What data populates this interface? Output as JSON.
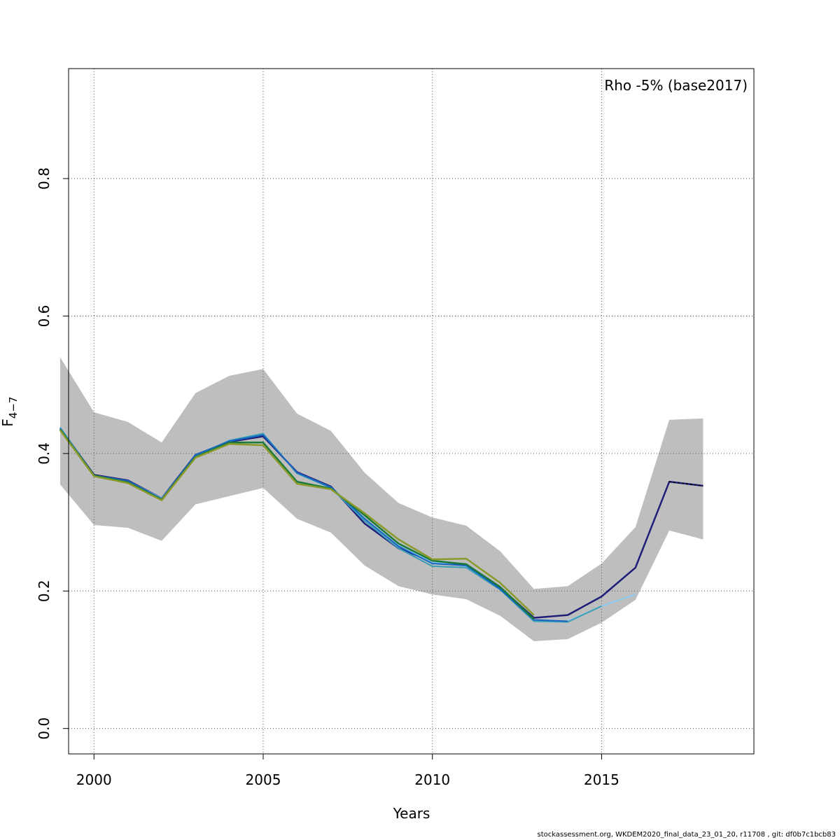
{
  "chart_data": {
    "type": "line",
    "xlabel": "Years",
    "ylabel_main": "F",
    "ylabel_sub": "4−7",
    "annotation": "Rho -5% (base2017)",
    "xlim": [
      1999.25,
      2019.5
    ],
    "ylim": [
      -0.037,
      0.96
    ],
    "x_ticks": [
      2000,
      2005,
      2010,
      2015
    ],
    "y_ticks": [
      0.0,
      0.2,
      0.4,
      0.6,
      0.8
    ],
    "y_tick_labels": [
      "0.0",
      "0.2",
      "0.4",
      "0.6",
      "0.8"
    ],
    "grid": true,
    "colors": {
      "band": "#bebebe",
      "grid": "#555555"
    },
    "confidence_band": {
      "x": [
        1999,
        2000,
        2001,
        2002,
        2003,
        2004,
        2005,
        2006,
        2007,
        2008,
        2009,
        2010,
        2011,
        2012,
        2013,
        2014,
        2015,
        2016,
        2017,
        2018
      ],
      "upper": [
        0.54,
        0.46,
        0.446,
        0.416,
        0.488,
        0.513,
        0.523,
        0.458,
        0.433,
        0.372,
        0.328,
        0.307,
        0.295,
        0.258,
        0.203,
        0.207,
        0.24,
        0.293,
        0.449,
        0.451
      ],
      "lower": [
        0.355,
        0.296,
        0.292,
        0.273,
        0.326,
        0.338,
        0.35,
        0.305,
        0.285,
        0.237,
        0.207,
        0.195,
        0.188,
        0.164,
        0.127,
        0.13,
        0.154,
        0.187,
        0.288,
        0.275
      ]
    },
    "series": [
      {
        "color": "#1f1f7a",
        "width": 2.5,
        "x": [
          1999,
          2000,
          2001,
          2002,
          2003,
          2004,
          2005,
          2006,
          2007,
          2008,
          2009,
          2010,
          2011,
          2012,
          2013,
          2014,
          2015,
          2016,
          2017,
          2018
        ],
        "values": [
          0.437,
          0.369,
          0.361,
          0.335,
          0.398,
          0.417,
          0.425,
          0.373,
          0.352,
          0.298,
          0.262,
          0.243,
          0.238,
          0.205,
          0.161,
          0.165,
          0.192,
          0.234,
          0.359,
          0.353
        ]
      },
      {
        "color": "#000000",
        "width": 1.5,
        "dashed": true,
        "x": [
          2017,
          2018
        ],
        "values": [
          0.359,
          0.353
        ]
      },
      {
        "color": "#8cc8f0",
        "width": 2,
        "x": [
          1999,
          2000,
          2001,
          2002,
          2003,
          2004,
          2005,
          2006,
          2007,
          2008,
          2009,
          2010,
          2011,
          2012,
          2013,
          2014,
          2015,
          2016
        ],
        "values": [
          0.437,
          0.368,
          0.36,
          0.335,
          0.397,
          0.418,
          0.428,
          0.372,
          0.351,
          0.305,
          0.266,
          0.242,
          0.236,
          0.203,
          0.157,
          0.156,
          0.178,
          0.195
        ]
      },
      {
        "color": "#3a9fb8",
        "width": 2,
        "x": [
          1999,
          2000,
          2001,
          2002,
          2003,
          2004,
          2005,
          2006,
          2007,
          2008,
          2009,
          2010,
          2011,
          2012,
          2013,
          2014,
          2015
        ],
        "values": [
          0.438,
          0.368,
          0.36,
          0.334,
          0.396,
          0.419,
          0.429,
          0.371,
          0.35,
          0.302,
          0.262,
          0.236,
          0.234,
          0.202,
          0.156,
          0.155,
          0.178
        ]
      },
      {
        "color": "#1565c0",
        "width": 2,
        "x": [
          1999,
          2000,
          2001,
          2002,
          2003,
          2004,
          2005,
          2006,
          2007,
          2008,
          2009,
          2010,
          2011,
          2012,
          2013,
          2014
        ],
        "values": [
          0.436,
          0.368,
          0.36,
          0.334,
          0.398,
          0.418,
          0.427,
          0.372,
          0.351,
          0.305,
          0.265,
          0.24,
          0.237,
          0.203,
          0.158,
          0.156
        ]
      },
      {
        "color": "#1a7a3a",
        "width": 2.5,
        "x": [
          1999,
          2000,
          2001,
          2002,
          2003,
          2004,
          2005,
          2006,
          2007,
          2008,
          2009,
          2010,
          2011,
          2012,
          2013
        ],
        "values": [
          0.435,
          0.368,
          0.358,
          0.333,
          0.395,
          0.416,
          0.416,
          0.359,
          0.349,
          0.31,
          0.269,
          0.244,
          0.239,
          0.206,
          0.159
        ]
      },
      {
        "color": "#8a9a2a",
        "width": 2.5,
        "x": [
          1999,
          2000,
          2001,
          2002,
          2003,
          2004,
          2005,
          2006,
          2007,
          2008,
          2009,
          2010,
          2011,
          2012,
          2013
        ],
        "values": [
          0.434,
          0.367,
          0.357,
          0.332,
          0.394,
          0.414,
          0.412,
          0.356,
          0.348,
          0.313,
          0.275,
          0.246,
          0.247,
          0.212,
          0.165
        ]
      }
    ]
  },
  "footer": "stockassessment.org, WKDEM2020_final_data_23_01_20, r11708 , git: df0b7c1bcb83"
}
